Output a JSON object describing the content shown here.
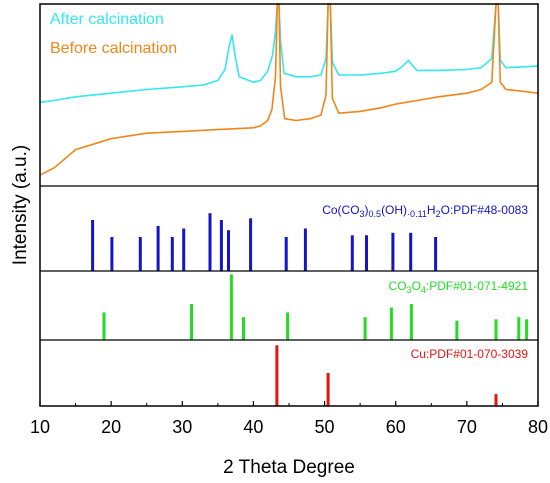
{
  "chart_data": {
    "type": "line",
    "xlabel": "2 Theta Degree",
    "ylabel": "Intensity (a.u.)",
    "xlim": [
      10,
      80
    ],
    "xticks": [
      "10",
      "20",
      "30",
      "40",
      "50",
      "60",
      "70",
      "80"
    ],
    "colors": {
      "after": "#33e8f0",
      "before": "#f0861a",
      "co_ref": "#1414c8",
      "co3o4_ref": "#22dd22",
      "cu_ref": "#e81010"
    },
    "xrd_panel": {
      "series": [
        {
          "name": "After calcination",
          "points": [
            [
              10,
              0.46
            ],
            [
              12,
              0.47
            ],
            [
              15,
              0.49
            ],
            [
              20,
              0.51
            ],
            [
              25,
              0.53
            ],
            [
              30,
              0.545
            ],
            [
              33,
              0.555
            ],
            [
              35,
              0.58
            ],
            [
              36,
              0.64
            ],
            [
              36.6,
              0.77
            ],
            [
              37,
              0.83
            ],
            [
              37.4,
              0.72
            ],
            [
              38,
              0.6
            ],
            [
              40,
              0.57
            ],
            [
              41,
              0.58
            ],
            [
              42,
              0.63
            ],
            [
              42.7,
              0.72
            ],
            [
              43.1,
              0.85
            ],
            [
              43.35,
              1.2
            ],
            [
              43.6,
              1.2
            ],
            [
              43.8,
              0.8
            ],
            [
              44.3,
              0.62
            ],
            [
              46,
              0.6
            ],
            [
              48,
              0.6
            ],
            [
              49.5,
              0.61
            ],
            [
              50.2,
              0.7
            ],
            [
              50.5,
              1.2
            ],
            [
              50.8,
              1.2
            ],
            [
              51.1,
              0.68
            ],
            [
              52,
              0.61
            ],
            [
              55,
              0.61
            ],
            [
              58,
              0.62
            ],
            [
              60,
              0.63
            ],
            [
              61,
              0.66
            ],
            [
              61.8,
              0.69
            ],
            [
              62.4,
              0.66
            ],
            [
              63,
              0.635
            ],
            [
              66,
              0.635
            ],
            [
              70,
              0.64
            ],
            [
              72,
              0.65
            ],
            [
              73.5,
              0.7
            ],
            [
              74.1,
              1.2
            ],
            [
              74.4,
              1.2
            ],
            [
              74.7,
              0.69
            ],
            [
              75.5,
              0.65
            ],
            [
              78,
              0.655
            ],
            [
              80,
              0.66
            ]
          ]
        },
        {
          "name": "Before calcination",
          "points": [
            [
              10,
              0.06
            ],
            [
              12,
              0.1
            ],
            [
              15,
              0.2
            ],
            [
              20,
              0.26
            ],
            [
              25,
              0.29
            ],
            [
              30,
              0.3
            ],
            [
              35,
              0.31
            ],
            [
              40,
              0.32
            ],
            [
              41,
              0.33
            ],
            [
              42,
              0.36
            ],
            [
              42.6,
              0.42
            ],
            [
              43.1,
              0.6
            ],
            [
              43.35,
              1.2
            ],
            [
              43.6,
              1.2
            ],
            [
              43.8,
              0.55
            ],
            [
              44.4,
              0.37
            ],
            [
              46,
              0.36
            ],
            [
              48,
              0.37
            ],
            [
              49.5,
              0.39
            ],
            [
              50.2,
              0.5
            ],
            [
              50.5,
              1.2
            ],
            [
              50.8,
              1.2
            ],
            [
              51.1,
              0.48
            ],
            [
              52,
              0.4
            ],
            [
              55,
              0.41
            ],
            [
              58,
              0.43
            ],
            [
              60,
              0.45
            ],
            [
              63,
              0.47
            ],
            [
              66,
              0.49
            ],
            [
              70,
              0.51
            ],
            [
              72,
              0.53
            ],
            [
              73.5,
              0.57
            ],
            [
              74.1,
              1.2
            ],
            [
              74.4,
              1.2
            ],
            [
              74.7,
              0.57
            ],
            [
              75.5,
              0.53
            ],
            [
              78,
              0.52
            ],
            [
              80,
              0.51
            ]
          ]
        }
      ]
    },
    "reference_panels": [
      {
        "label_main": "Co(CO",
        "label_sub1": "3",
        "label_mid1": ")",
        "label_sub2": "0.5",
        "label_mid2": "(OH)",
        "label_sub3": "·0.11",
        "label_mid3": "H",
        "label_sub4": "2",
        "label_end": "O:PDF#48-0083",
        "peaks": [
          [
            17.4,
            0.6
          ],
          [
            20.1,
            0.4
          ],
          [
            24.1,
            0.4
          ],
          [
            26.6,
            0.53
          ],
          [
            28.6,
            0.4
          ],
          [
            30.2,
            0.5
          ],
          [
            33.9,
            0.68
          ],
          [
            35.5,
            0.6
          ],
          [
            36.5,
            0.48
          ],
          [
            39.6,
            0.62
          ],
          [
            44.6,
            0.4
          ],
          [
            47.3,
            0.5
          ],
          [
            53.9,
            0.42
          ],
          [
            55.9,
            0.42
          ],
          [
            59.6,
            0.45
          ],
          [
            62.1,
            0.45
          ],
          [
            65.6,
            0.4
          ]
        ]
      },
      {
        "label_main": "CO",
        "label_sub1": "3",
        "label_mid1": "O",
        "label_sub2": "4",
        "label_end": ":PDF#01-071-4921",
        "peaks": [
          [
            19,
            0.4
          ],
          [
            31.3,
            0.52
          ],
          [
            36.9,
            0.95
          ],
          [
            38.6,
            0.33
          ],
          [
            44.8,
            0.4
          ],
          [
            55.7,
            0.33
          ],
          [
            59.4,
            0.47
          ],
          [
            62.2,
            0.52
          ],
          [
            68.6,
            0.28
          ],
          [
            74.1,
            0.3
          ],
          [
            77.3,
            0.33
          ],
          [
            78.4,
            0.3
          ]
        ]
      },
      {
        "label_main": "Cu:PDF#01-070-3039",
        "peaks": [
          [
            43.3,
            0.92
          ],
          [
            50.5,
            0.5
          ],
          [
            74.1,
            0.18
          ]
        ]
      }
    ]
  }
}
